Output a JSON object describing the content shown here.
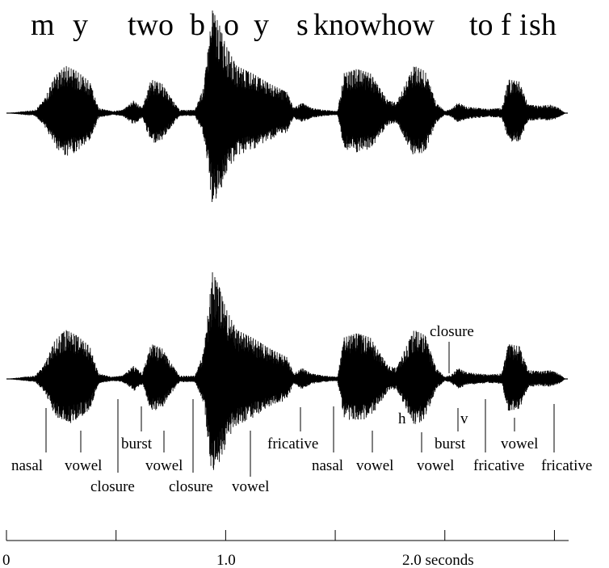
{
  "sentence": {
    "words": [
      "m",
      "y",
      "two",
      "b",
      "o",
      "y",
      "s",
      "knowhow",
      "to",
      "f",
      "i",
      "s",
      "h"
    ]
  },
  "segments": [
    "nasal",
    "vowel",
    "closure",
    "burst",
    "vowel",
    "closure",
    "vowel",
    "fricative",
    "nasal",
    "vowel",
    "h",
    "vowel",
    "closure",
    "v",
    "burst",
    "fricative",
    "vowel",
    "fricative"
  ],
  "time_axis": {
    "tick_labels": [
      "0",
      "1.0",
      "2.0 seconds"
    ],
    "major_ticks": [
      0,
      0.5,
      1.0,
      1.5,
      2.0,
      2.5
    ],
    "range": [
      0,
      2.55
    ]
  },
  "waveform_envelope": [
    [
      0.0,
      0.0
    ],
    [
      0.13,
      0.03
    ],
    [
      0.17,
      0.12
    ],
    [
      0.22,
      0.35
    ],
    [
      0.27,
      0.45
    ],
    [
      0.32,
      0.4
    ],
    [
      0.38,
      0.3
    ],
    [
      0.42,
      0.05
    ],
    [
      0.48,
      0.02
    ],
    [
      0.53,
      0.03
    ],
    [
      0.58,
      0.12
    ],
    [
      0.62,
      0.05
    ],
    [
      0.66,
      0.32
    ],
    [
      0.71,
      0.28
    ],
    [
      0.74,
      0.18
    ],
    [
      0.79,
      0.03
    ],
    [
      0.86,
      0.03
    ],
    [
      0.9,
      0.25
    ],
    [
      0.94,
      0.98
    ],
    [
      0.97,
      0.85
    ],
    [
      1.0,
      0.65
    ],
    [
      1.05,
      0.45
    ],
    [
      1.12,
      0.38
    ],
    [
      1.2,
      0.28
    ],
    [
      1.28,
      0.2
    ],
    [
      1.31,
      0.05
    ],
    [
      1.35,
      0.1
    ],
    [
      1.39,
      0.05
    ],
    [
      1.45,
      0.03
    ],
    [
      1.51,
      0.02
    ],
    [
      1.54,
      0.38
    ],
    [
      1.6,
      0.42
    ],
    [
      1.66,
      0.38
    ],
    [
      1.7,
      0.25
    ],
    [
      1.74,
      0.12
    ],
    [
      1.78,
      0.1
    ],
    [
      1.82,
      0.28
    ],
    [
      1.86,
      0.45
    ],
    [
      1.91,
      0.4
    ],
    [
      1.96,
      0.1
    ],
    [
      2.0,
      0.02
    ],
    [
      2.03,
      0.04
    ],
    [
      2.06,
      0.1
    ],
    [
      2.1,
      0.06
    ],
    [
      2.15,
      0.05
    ],
    [
      2.2,
      0.04
    ],
    [
      2.26,
      0.05
    ],
    [
      2.29,
      0.32
    ],
    [
      2.34,
      0.3
    ],
    [
      2.38,
      0.08
    ],
    [
      2.44,
      0.07
    ],
    [
      2.48,
      0.08
    ],
    [
      2.52,
      0.05
    ],
    [
      2.55,
      0.0
    ]
  ]
}
